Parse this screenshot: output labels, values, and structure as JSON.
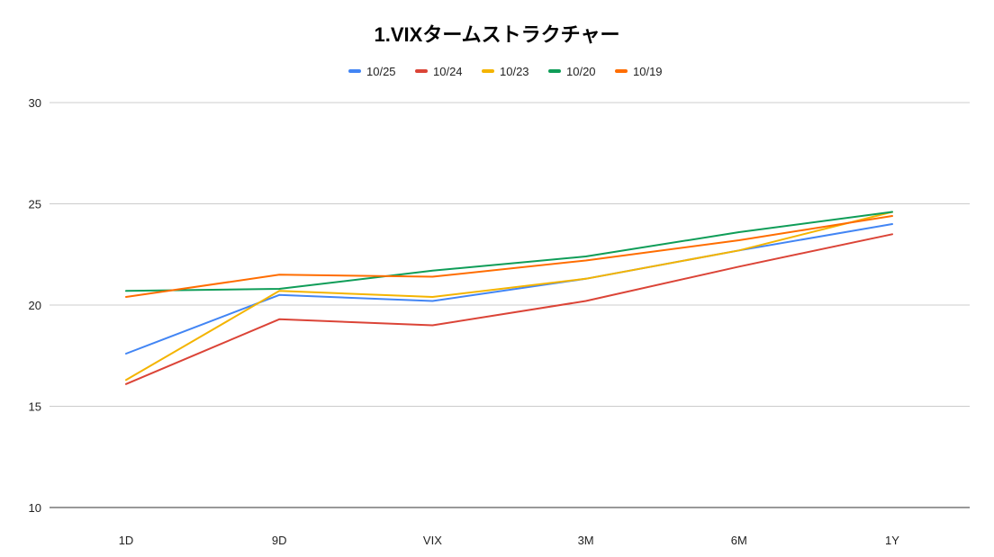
{
  "chart_data": {
    "type": "line",
    "title": "1.VIXタームストラクチャー",
    "xlabel": "",
    "ylabel": "",
    "categories": [
      "1D",
      "9D",
      "VIX",
      "3M",
      "6M",
      "1Y"
    ],
    "ylim": [
      10,
      30
    ],
    "yticks": [
      10,
      15,
      20,
      25,
      30
    ],
    "grid": true,
    "legend_position": "top",
    "series": [
      {
        "name": "10/25",
        "color": "#4285f4",
        "values": [
          17.6,
          20.5,
          20.2,
          21.3,
          22.7,
          24.0
        ]
      },
      {
        "name": "10/24",
        "color": "#db4437",
        "values": [
          16.1,
          19.3,
          19.0,
          20.2,
          21.9,
          23.5
        ]
      },
      {
        "name": "10/23",
        "color": "#f4b400",
        "values": [
          16.3,
          20.7,
          20.4,
          21.3,
          22.7,
          24.6
        ]
      },
      {
        "name": "10/20",
        "color": "#0f9d58",
        "values": [
          20.7,
          20.8,
          21.7,
          22.4,
          23.6,
          24.6
        ]
      },
      {
        "name": "10/19",
        "color": "#ff6d00",
        "values": [
          20.4,
          21.5,
          21.4,
          22.2,
          23.2,
          24.4
        ]
      }
    ]
  }
}
